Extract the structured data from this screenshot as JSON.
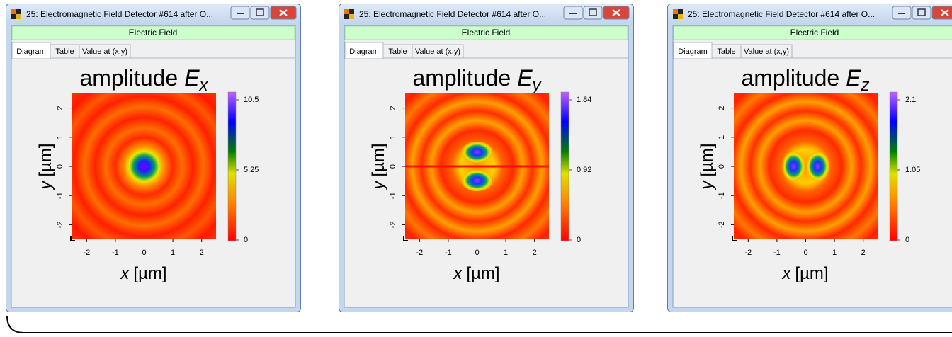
{
  "windows": [
    {
      "title": "25: Electromagnetic Field Detector #614 after O...",
      "header": "Electric Field",
      "tabs": [
        "Diagram",
        "Table",
        "Value at (x,y)"
      ],
      "plot": {
        "title": "amplitude",
        "field": "E",
        "component": "x",
        "xlabel": {
          "var": "x",
          "unit": "[µm]"
        },
        "ylabel": {
          "var": "y",
          "unit": "[µm]"
        },
        "xlim": [
          -2.5,
          2.5
        ],
        "ylim": [
          -2.5,
          2.5
        ],
        "xticks": [
          -2,
          -1,
          0,
          1,
          2
        ],
        "yticks": [
          -2,
          -1,
          0,
          1,
          2
        ],
        "colorbar_ticks": [
          0,
          5.25,
          10.5
        ]
      }
    },
    {
      "title": "25: Electromagnetic Field Detector #614 after O...",
      "header": "Electric Field",
      "tabs": [
        "Diagram",
        "Table",
        "Value at (x,y)"
      ],
      "plot": {
        "title": "amplitude",
        "field": "E",
        "component": "y",
        "xlabel": {
          "var": "x",
          "unit": "[µm]"
        },
        "ylabel": {
          "var": "y",
          "unit": "[µm]"
        },
        "xlim": [
          -2.5,
          2.5
        ],
        "ylim": [
          -2.5,
          2.5
        ],
        "xticks": [
          -2,
          -1,
          0,
          1,
          2
        ],
        "yticks": [
          -2,
          -1,
          0,
          1,
          2
        ],
        "colorbar_ticks": [
          0,
          0.92,
          1.84
        ]
      }
    },
    {
      "title": "25: Electromagnetic Field Detector #614 after O...",
      "header": "Electric Field",
      "tabs": [
        "Diagram",
        "Table",
        "Value at (x,y)"
      ],
      "plot": {
        "title": "amplitude",
        "field": "E",
        "component": "z",
        "xlabel": {
          "var": "x",
          "unit": "[µm]"
        },
        "ylabel": {
          "var": "y",
          "unit": "[µm]"
        },
        "xlim": [
          -2.5,
          2.5
        ],
        "ylim": [
          -2.5,
          2.5
        ],
        "xticks": [
          -2,
          -1,
          0,
          1,
          2
        ],
        "yticks": [
          -2,
          -1,
          0,
          1,
          2
        ],
        "colorbar_ticks": [
          0,
          1.05,
          2.1
        ]
      }
    }
  ]
}
